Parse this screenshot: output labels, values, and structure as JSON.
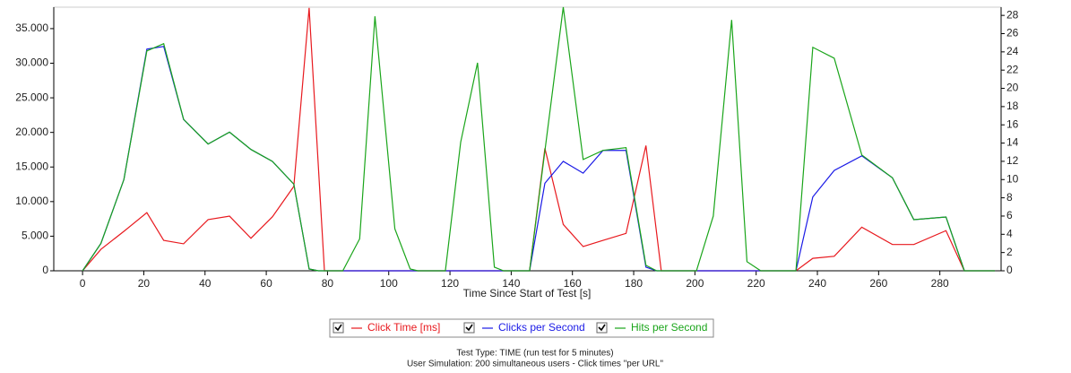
{
  "chart_data": {
    "type": "line",
    "xlabel": "Time Since Start of Test [s]",
    "xlim": [
      -9.4,
      300
    ],
    "xticks": [
      0,
      20,
      40,
      60,
      80,
      100,
      120,
      140,
      160,
      180,
      200,
      220,
      240,
      260,
      280
    ],
    "ylim": [
      0,
      38100
    ],
    "yticks": [
      0,
      {
        "value": 5000,
        "label": "5.000"
      },
      {
        "value": 10000,
        "label": "10.000"
      },
      {
        "value": 15000,
        "label": "15.000"
      },
      {
        "value": 20000,
        "label": "20.000"
      },
      {
        "value": 25000,
        "label": "25.000"
      },
      {
        "value": 30000,
        "label": "30.000"
      },
      {
        "value": 35000,
        "label": "35.000"
      }
    ],
    "y2lim": [
      0,
      28.9
    ],
    "y2ticks": [
      0,
      2,
      4,
      6,
      8,
      10,
      12,
      14,
      16,
      18,
      20,
      22,
      24,
      26,
      28
    ],
    "legend": "bottom",
    "series": [
      {
        "name": "Click Time [ms]",
        "color": "#e8191e",
        "axis": "y",
        "x": [
          0,
          6,
          13.5,
          21,
          26.5,
          33,
          41,
          48,
          55,
          62,
          69,
          74,
          79,
          146,
          151,
          157,
          163.5,
          170,
          177.5,
          184,
          189,
          233,
          238.5,
          245.5,
          254.5,
          264.5,
          271.5,
          282,
          288,
          298
        ],
        "values": [
          0,
          3100,
          5700,
          8400,
          4400,
          3900,
          7400,
          7900,
          4700,
          7800,
          12200,
          38000,
          0,
          0,
          17700,
          6700,
          3500,
          4400,
          5400,
          18100,
          0,
          0,
          1800,
          2100,
          6300,
          3800,
          3800,
          5800,
          0,
          0
        ]
      },
      {
        "name": "Clicks per Second",
        "color": "#1a1ae6",
        "axis": "y2",
        "x": [
          0,
          6,
          13.5,
          21,
          26.5,
          33,
          41,
          48,
          55,
          62,
          69,
          74,
          77,
          146,
          151,
          157,
          163.5,
          170,
          177.5,
          184,
          187.5,
          233,
          238.5,
          245.5,
          254.5,
          264.5,
          271.5,
          282,
          288,
          298
        ],
        "values": [
          0,
          3,
          10,
          24.3,
          24.6,
          16.6,
          13.9,
          15.2,
          13.3,
          12,
          9.5,
          0.2,
          0,
          0,
          9.6,
          12,
          10.7,
          13.2,
          13.2,
          0.4,
          0,
          0,
          8.1,
          11,
          12.6,
          10.2,
          5.6,
          5.9,
          0,
          0
        ]
      },
      {
        "name": "Hits per Second",
        "color": "#1aa51a",
        "axis": "y2",
        "x": [
          0,
          6,
          13.5,
          21,
          26.5,
          33,
          41,
          48,
          55,
          62,
          69,
          74,
          77,
          85,
          90.5,
          95.5,
          102,
          107,
          109.5,
          118.5,
          123.5,
          129,
          134.5,
          137.5,
          146,
          157,
          163.5,
          170,
          177.5,
          184,
          187.5,
          200.5,
          206,
          212,
          217,
          221.5,
          233,
          238.5,
          245.5,
          254.5,
          264.5,
          271.5,
          282,
          288,
          298
        ],
        "values": [
          0,
          3,
          10,
          24.1,
          24.9,
          16.6,
          13.9,
          15.2,
          13.3,
          12,
          9.5,
          0.2,
          0,
          0,
          3.5,
          27.9,
          4.6,
          0.2,
          0,
          0,
          14.1,
          22.8,
          0.4,
          0,
          0,
          28.9,
          12.2,
          13.2,
          13.5,
          0.6,
          0,
          0,
          6,
          27.5,
          1,
          0,
          0,
          24.5,
          23.3,
          12.7,
          10.2,
          5.6,
          5.9,
          0,
          0
        ]
      }
    ],
    "footer": [
      "Test Type: TIME (run test for 5 minutes)",
      "User Simulation: 200 simultaneous users - Click times \"per URL\""
    ]
  }
}
